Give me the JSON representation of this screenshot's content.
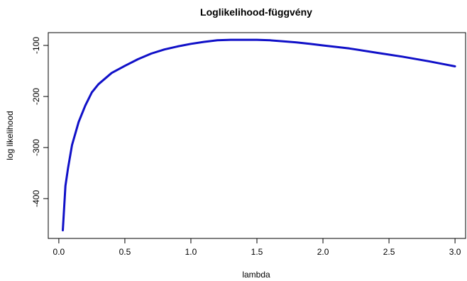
{
  "chart_data": {
    "type": "line",
    "title": "Loglikelihood-függvény",
    "xlabel": "lambda",
    "ylabel": "log likelihood",
    "xlim": [
      -0.08,
      3.08
    ],
    "ylim": [
      -478,
      -75
    ],
    "x_ticks": [
      {
        "value": 0.0,
        "label": "0.0"
      },
      {
        "value": 0.5,
        "label": "0.5"
      },
      {
        "value": 1.0,
        "label": "1.0"
      },
      {
        "value": 1.5,
        "label": "1.5"
      },
      {
        "value": 2.0,
        "label": "2.0"
      },
      {
        "value": 2.5,
        "label": "2.5"
      },
      {
        "value": 3.0,
        "label": "3.0"
      }
    ],
    "y_ticks": [
      {
        "value": -100,
        "label": "-100"
      },
      {
        "value": -200,
        "label": "-200"
      },
      {
        "value": -300,
        "label": "-300"
      },
      {
        "value": -400,
        "label": "-400"
      }
    ],
    "grid": false,
    "series": [
      {
        "color": "#1010c8",
        "x": [
          0.03,
          0.05,
          0.07,
          0.1,
          0.15,
          0.2,
          0.25,
          0.3,
          0.4,
          0.5,
          0.6,
          0.7,
          0.8,
          0.9,
          1.0,
          1.1,
          1.2,
          1.3,
          1.4,
          1.5,
          1.6,
          1.7,
          1.8,
          1.9,
          2.0,
          2.2,
          2.4,
          2.6,
          2.8,
          3.0
        ],
        "y": [
          -462,
          -375,
          -340,
          -295,
          -250,
          -218,
          -192,
          -176,
          -154,
          -140,
          -127,
          -116,
          -108,
          -102,
          -97,
          -93,
          -90,
          -89,
          -89,
          -89,
          -90,
          -92,
          -94,
          -97,
          -100,
          -106,
          -114,
          -122,
          -131,
          -141
        ]
      }
    ]
  }
}
